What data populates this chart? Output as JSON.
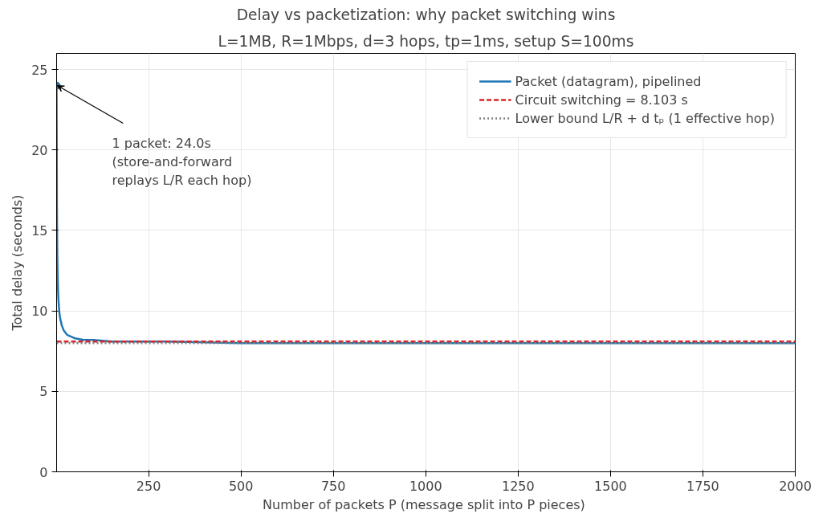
{
  "chart_data": {
    "type": "line",
    "title": "Delay vs packetization: why packet switching wins",
    "subtitle": "L=1MB, R=1Mbps, d=3 hops, tp=1ms, setup S=100ms",
    "xlabel": "Number of packets P  (message split into P pieces)",
    "ylabel": "Total delay (seconds)",
    "series": [
      {
        "name": "Packet (datagram), pipelined",
        "color": "#1f77b4",
        "x": [
          1,
          2,
          3,
          4,
          5,
          6,
          8,
          10,
          15,
          20,
          30,
          40,
          50,
          75,
          100,
          150,
          200,
          300,
          500,
          750,
          1000,
          1500,
          2000
        ],
        "values": [
          24.0,
          16.0,
          13.3,
          12.0,
          11.2,
          10.7,
          10.0,
          9.6,
          9.1,
          8.8,
          8.5,
          8.4,
          8.3,
          8.2,
          8.2,
          8.1,
          8.1,
          8.1,
          8.0,
          8.0,
          8.0,
          8.0,
          8.0
        ]
      },
      {
        "color": "#1f77b4",
        "type": "scatter",
        "marker": "circle",
        "x": [
          1
        ],
        "values": [
          24.0
        ]
      }
    ],
    "ref_lines": [
      {
        "axis": "y",
        "value": 8.103,
        "label": "Circuit switching = 8.103 s",
        "color": "#d62728",
        "line_style": "dashed"
      },
      {
        "axis": "y",
        "value": 8.003,
        "label": "Lower bound L/R + d tₚ (1 effective hop)",
        "color": "#7f7f7f",
        "line_style": "dotted"
      }
    ],
    "annotations": [
      {
        "text": "1 packet: 24.0s\n(store-and-forward\nreplays L/R each hop)",
        "x": 1,
        "y": 24.0
      }
    ],
    "xlim": [
      1,
      2000
    ],
    "xticks": [
      250,
      500,
      750,
      1000,
      1250,
      1500,
      1750,
      2000
    ],
    "ylim": [
      0,
      26
    ],
    "yticks": [
      0,
      5,
      10,
      15,
      20,
      25
    ],
    "grid": true,
    "legend": "top right",
    "line_style": "solid"
  }
}
